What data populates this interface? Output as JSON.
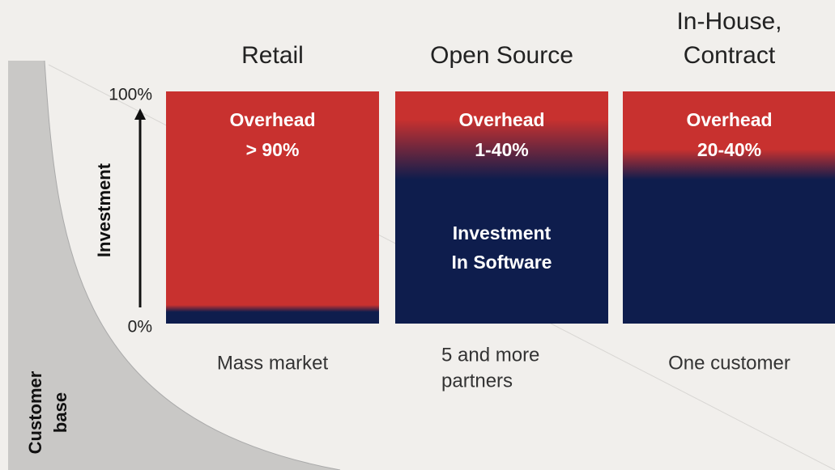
{
  "axis": {
    "top": "100%",
    "bottom": "0%",
    "label": "Investment"
  },
  "customer_axis": {
    "label_lines": [
      "Customer",
      "base"
    ]
  },
  "columns": [
    {
      "title_lines": [
        "Retail"
      ],
      "overhead_lines": [
        "Overhead",
        "> 90%"
      ],
      "market_lines": [
        "Mass market"
      ]
    },
    {
      "title_lines": [
        "Open Source"
      ],
      "overhead_lines": [
        "Overhead",
        "1-40%"
      ],
      "investment_lines": [
        "Investment",
        "In Software"
      ],
      "market_lines": [
        "5 and more",
        "partners"
      ]
    },
    {
      "title_lines": [
        "In-House,",
        "Contract"
      ],
      "overhead_lines": [
        "Overhead",
        "20-40%"
      ],
      "market_lines": [
        "One customer"
      ]
    }
  ]
}
